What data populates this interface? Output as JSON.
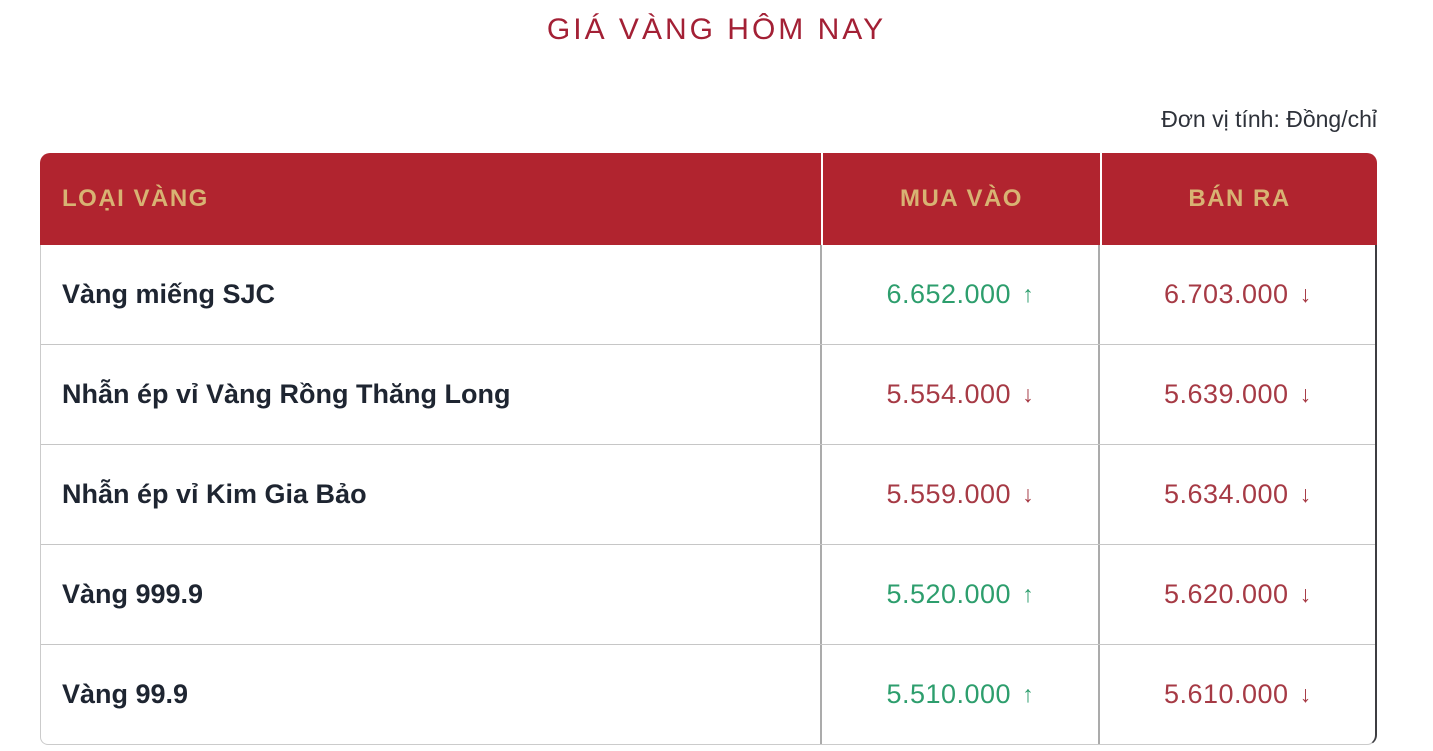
{
  "page": {
    "title": "GIÁ VÀNG HÔM NAY",
    "unit_label": "Đơn vị tính: Đồng/chỉ"
  },
  "colors": {
    "header_background": "#b1242f",
    "header_text_gold": "#d8b373",
    "title_red": "#a32035",
    "price_up_green": "#2d9e6d",
    "price_down_red": "#a63a45",
    "row_label_text": "#1e2531"
  },
  "icons": {
    "trend_up": "↑",
    "trend_down": "↓"
  },
  "table": {
    "headers": [
      "LOẠI VÀNG",
      "MUA VÀO",
      "BÁN RA"
    ],
    "rows": [
      {
        "type": "Vàng miếng SJC",
        "buy": "6.652.000",
        "buy_trend": "up",
        "sell": "6.703.000",
        "sell_trend": "down"
      },
      {
        "type": "Nhẫn ép vỉ Vàng Rồng Thăng Long",
        "buy": "5.554.000",
        "buy_trend": "down",
        "sell": "5.639.000",
        "sell_trend": "down"
      },
      {
        "type": "Nhẫn ép vỉ Kim Gia Bảo",
        "buy": "5.559.000",
        "buy_trend": "down",
        "sell": "5.634.000",
        "sell_trend": "down"
      },
      {
        "type": "Vàng 999.9",
        "buy": "5.520.000",
        "buy_trend": "up",
        "sell": "5.620.000",
        "sell_trend": "down"
      },
      {
        "type": "Vàng 99.9",
        "buy": "5.510.000",
        "buy_trend": "up",
        "sell": "5.610.000",
        "sell_trend": "down"
      }
    ]
  }
}
